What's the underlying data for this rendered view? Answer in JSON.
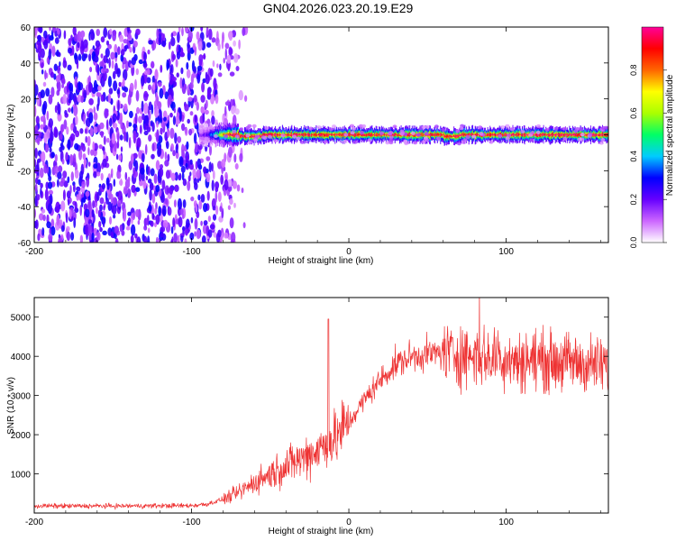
{
  "figure": {
    "title": "GN04.2026.023.20.19.E29"
  },
  "colors": {
    "snr_line": "#ee3333",
    "background": "#ffffff",
    "axis": "#000000"
  },
  "chart_data": [
    {
      "type": "heatmap",
      "name": "spectrogram",
      "xlabel": "Height of straight line (km)",
      "ylabel": "Frequency (Hz)",
      "xlim": [
        -200,
        165
      ],
      "ylim": [
        -60,
        60
      ],
      "xticks": [
        -200,
        -100,
        0,
        100
      ],
      "yticks": [
        60,
        40,
        20,
        0,
        -20,
        -40,
        -60
      ],
      "noise_region_km": [
        -200,
        -70
      ],
      "signal_start_km": -95,
      "signal_frequency_hz": 0,
      "signal_width_hz": 3,
      "colorbar": {
        "label": "Normalized spectral amplitude",
        "range": [
          0.0,
          1.0
        ],
        "ticks": [
          "0.0",
          "0.2",
          "0.4",
          "0.6",
          "0.8"
        ],
        "colormap": [
          "#ffffff",
          "#cc66ff",
          "#6600ff",
          "#0000ff",
          "#00ccff",
          "#00ff66",
          "#aaff00",
          "#ffff00",
          "#ff6600",
          "#ff0000",
          "#ff0099"
        ]
      }
    },
    {
      "type": "line",
      "name": "snr",
      "xlabel": "Height of straight line (km)",
      "ylabel": "SNR (10 * v/v)",
      "xlim": [
        -200,
        165
      ],
      "ylim": [
        0,
        5500
      ],
      "xticks": [
        -200,
        -100,
        0,
        100
      ],
      "yticks": [
        1000,
        2000,
        3000,
        4000,
        5000
      ],
      "series": [
        {
          "name": "SNR",
          "x": [
            -200,
            -150,
            -100,
            -90,
            -80,
            -70,
            -60,
            -50,
            -40,
            -30,
            -20,
            -10,
            0,
            10,
            20,
            30,
            40,
            60,
            80,
            100,
            120,
            140,
            165
          ],
          "values": [
            180,
            180,
            190,
            230,
            350,
            520,
            780,
            1000,
            1200,
            1400,
            1620,
            1850,
            2300,
            2900,
            3400,
            3800,
            4000,
            4100,
            4000,
            3950,
            3900,
            3850,
            3750
          ],
          "spikes": [
            {
              "x": -13,
              "value": 4950
            }
          ]
        }
      ]
    }
  ]
}
